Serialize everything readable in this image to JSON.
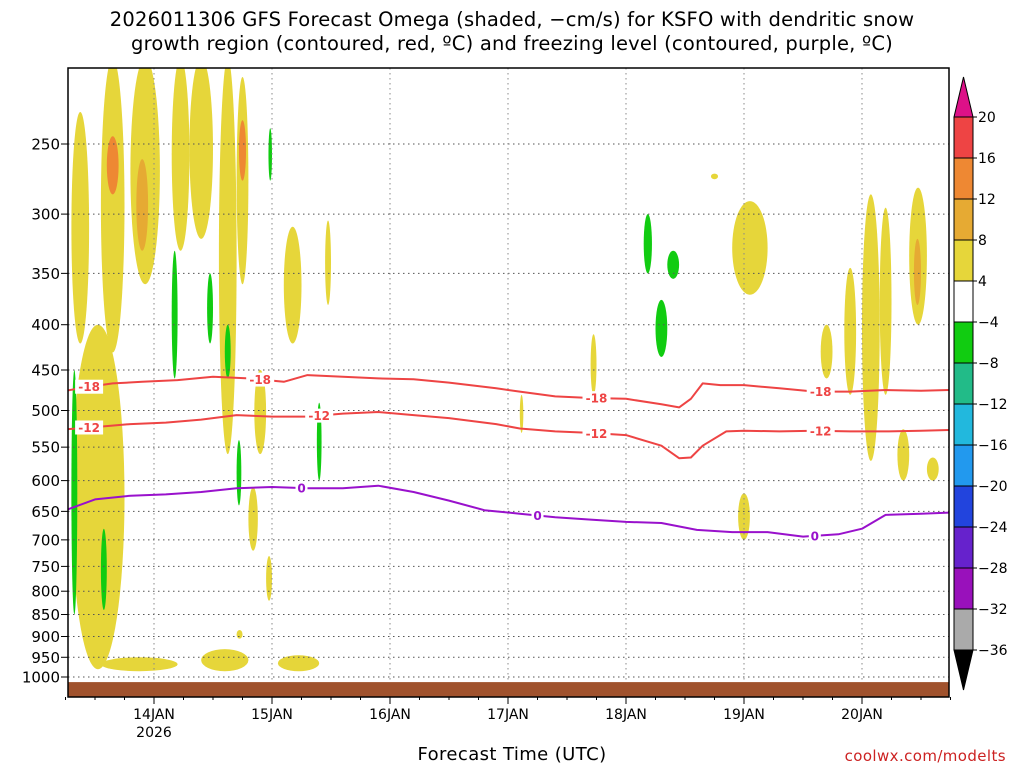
{
  "title": {
    "line1": "2026011306 GFS Forecast Omega (shaded, −cm/s) for KSFO with dendritic snow",
    "line2": "growth region (contoured, red, ºC) and freezing level (contoured, purple, ºC)"
  },
  "xlabel": "Forecast Time (UTC)",
  "credit": "coolwx.com/modelts",
  "chart_data": {
    "type": "heatmap",
    "x_axis": {
      "ticks": [
        "14JAN",
        "15JAN",
        "16JAN",
        "17JAN",
        "18JAN",
        "19JAN",
        "20JAN"
      ],
      "sub_label": "2026",
      "range_days": [
        13.25,
        20.75
      ]
    },
    "y_axis": {
      "label": "",
      "ticks": [
        250,
        300,
        350,
        400,
        450,
        500,
        550,
        600,
        650,
        700,
        750,
        800,
        850,
        900,
        950,
        1000
      ],
      "range_hpa": [
        200,
        1020
      ],
      "scale": "log-pressure"
    },
    "grid": true,
    "colorbar": {
      "labels": [
        "20",
        "16",
        "12",
        "8",
        "4",
        "−4",
        "−8",
        "−12",
        "−16",
        "−20",
        "−24",
        "−28",
        "−32",
        "−36"
      ],
      "bands": [
        {
          "max": 20,
          "min": 16,
          "color": "#ee4444"
        },
        {
          "max": 16,
          "min": 12,
          "color": "#ee8833"
        },
        {
          "max": 12,
          "min": 8,
          "color": "#e6aa33"
        },
        {
          "max": 8,
          "min": 4,
          "color": "#e6d63a"
        },
        {
          "max": 4,
          "min": -4,
          "color": "#ffffff"
        },
        {
          "max": -4,
          "min": -8,
          "color": "#11cc11"
        },
        {
          "max": -8,
          "min": -12,
          "color": "#22bb88"
        },
        {
          "max": -12,
          "min": -16,
          "color": "#22b8dd"
        },
        {
          "max": -16,
          "min": -20,
          "color": "#2299ee"
        },
        {
          "max": -20,
          "min": -24,
          "color": "#2244dd"
        },
        {
          "max": -24,
          "min": -28,
          "color": "#6622cc"
        },
        {
          "max": -28,
          "min": -32,
          "color": "#9911bb"
        },
        {
          "max": -32,
          "min": -36,
          "color": "#aaaaaa"
        }
      ],
      "top_arrow_color": "#dd1188",
      "bottom_arrow_color": "#000000"
    },
    "ground_color": "#a0522d",
    "series": [
      {
        "name": "-18",
        "color": "#ee4444",
        "x": [
          13.25,
          13.45,
          13.65,
          13.9,
          14.2,
          14.5,
          14.8,
          15.1,
          15.3,
          15.6,
          15.9,
          16.2,
          16.5,
          16.9,
          17.1,
          17.4,
          17.7,
          18.0,
          18.3,
          18.45,
          18.55,
          18.65,
          18.8,
          19.0,
          19.3,
          19.6,
          19.9,
          20.2,
          20.5,
          20.75
        ],
        "values": [
          475,
          470,
          466,
          464,
          462,
          458,
          460,
          464,
          456,
          458,
          460,
          461,
          465,
          472,
          476,
          482,
          484,
          485,
          492,
          496,
          485,
          466,
          468,
          468,
          472,
          476,
          476,
          474,
          475,
          474
        ]
      },
      {
        "name": "-12",
        "color": "#ee4444",
        "x": [
          13.25,
          13.5,
          13.8,
          14.1,
          14.4,
          14.7,
          15.0,
          15.3,
          15.6,
          15.9,
          16.2,
          16.5,
          16.9,
          17.1,
          17.4,
          17.7,
          18.0,
          18.3,
          18.45,
          18.55,
          18.65,
          18.85,
          19.0,
          19.3,
          19.6,
          19.9,
          20.2,
          20.5,
          20.75
        ],
        "values": [
          525,
          522,
          518,
          516,
          512,
          506,
          508,
          508,
          504,
          502,
          506,
          510,
          518,
          524,
          528,
          530,
          533,
          548,
          566,
          565,
          548,
          528,
          527,
          528,
          527,
          528,
          528,
          527,
          526
        ]
      },
      {
        "name": "0",
        "color": "#9911cc",
        "x": [
          13.25,
          13.5,
          13.8,
          14.1,
          14.4,
          14.7,
          15.0,
          15.3,
          15.6,
          15.9,
          16.2,
          16.5,
          16.8,
          17.1,
          17.4,
          17.7,
          18.0,
          18.3,
          18.6,
          18.9,
          19.2,
          19.5,
          19.8,
          20.0,
          20.2,
          20.5,
          20.75
        ],
        "values": [
          648,
          630,
          624,
          622,
          618,
          612,
          610,
          612,
          612,
          608,
          618,
          632,
          648,
          654,
          660,
          664,
          668,
          670,
          682,
          686,
          686,
          694,
          690,
          680,
          656,
          654,
          652
        ]
      }
    ],
    "contour_label_positions": [
      {
        "series": "-18",
        "text": "-18",
        "x": [
          13.45,
          14.9,
          17.75,
          19.65
        ]
      },
      {
        "series": "-12",
        "text": "-12",
        "x": [
          13.45,
          15.4,
          17.75,
          19.65
        ]
      },
      {
        "series": "0",
        "text": "0",
        "x": [
          15.25,
          17.25,
          19.6
        ]
      }
    ],
    "omega_shaded_regions": [
      {
        "value": 6,
        "x": [
          13.3,
          13.45
        ],
        "p": [
          230,
          420
        ]
      },
      {
        "value": 6,
        "x": [
          13.55,
          13.75
        ],
        "p": [
          200,
          430
        ]
      },
      {
        "value": 14,
        "x": [
          13.6,
          13.7
        ],
        "p": [
          245,
          285
        ]
      },
      {
        "value": 6,
        "x": [
          13.8,
          14.05
        ],
        "p": [
          200,
          360
        ]
      },
      {
        "value": 10,
        "x": [
          13.85,
          13.95
        ],
        "p": [
          260,
          330
        ]
      },
      {
        "value": 6,
        "x": [
          14.15,
          14.3
        ],
        "p": [
          200,
          330
        ]
      },
      {
        "value": 6,
        "x": [
          14.3,
          14.5
        ],
        "p": [
          200,
          320
        ]
      },
      {
        "value": 6,
        "x": [
          14.55,
          14.7
        ],
        "p": [
          200,
          560
        ]
      },
      {
        "value": 6,
        "x": [
          14.7,
          14.8
        ],
        "p": [
          210,
          360
        ]
      },
      {
        "value": 16,
        "x": [
          14.72,
          14.78
        ],
        "p": [
          235,
          275
        ]
      },
      {
        "value": 6,
        "x": [
          14.85,
          14.95
        ],
        "p": [
          450,
          560
        ]
      },
      {
        "value": 6,
        "x": [
          15.1,
          15.25
        ],
        "p": [
          310,
          420
        ]
      },
      {
        "value": 6,
        "x": [
          15.45,
          15.5
        ],
        "p": [
          305,
          380
        ]
      },
      {
        "value": 6,
        "x": [
          13.3,
          13.75
        ],
        "p": [
          400,
          980
        ]
      },
      {
        "value": 6,
        "x": [
          13.55,
          13.7
        ],
        "p": [
          620,
          900
        ]
      },
      {
        "value": 6,
        "x": [
          14.8,
          14.88
        ],
        "p": [
          610,
          720
        ]
      },
      {
        "value": 6,
        "x": [
          13.55,
          14.2
        ],
        "p": [
          950,
          985
        ]
      },
      {
        "value": 6,
        "x": [
          14.4,
          14.8
        ],
        "p": [
          930,
          985
        ]
      },
      {
        "value": 6,
        "x": [
          15.05,
          15.4
        ],
        "p": [
          945,
          985
        ]
      },
      {
        "value": 6,
        "x": [
          14.7,
          14.75
        ],
        "p": [
          885,
          905
        ]
      },
      {
        "value": 6,
        "x": [
          14.95,
          15.0
        ],
        "p": [
          730,
          820
        ]
      },
      {
        "value": 6,
        "x": [
          17.1,
          17.13
        ],
        "p": [
          480,
          530
        ]
      },
      {
        "value": 6,
        "x": [
          17.7,
          17.75
        ],
        "p": [
          410,
          480
        ]
      },
      {
        "value": 6,
        "x": [
          18.95,
          19.05
        ],
        "p": [
          620,
          700
        ]
      },
      {
        "value": 6,
        "x": [
          18.9,
          19.2
        ],
        "p": [
          290,
          370
        ]
      },
      {
        "value": 6,
        "x": [
          18.72,
          18.78
        ],
        "p": [
          270,
          274
        ]
      },
      {
        "value": 6,
        "x": [
          19.65,
          19.75
        ],
        "p": [
          400,
          460
        ]
      },
      {
        "value": 6,
        "x": [
          19.85,
          19.95
        ],
        "p": [
          345,
          480
        ]
      },
      {
        "value": 6,
        "x": [
          20.0,
          20.15
        ],
        "p": [
          285,
          570
        ]
      },
      {
        "value": 6,
        "x": [
          20.15,
          20.25
        ],
        "p": [
          295,
          480
        ]
      },
      {
        "value": 6,
        "x": [
          20.3,
          20.4
        ],
        "p": [
          525,
          600
        ]
      },
      {
        "value": 6,
        "x": [
          20.55,
          20.65
        ],
        "p": [
          565,
          600
        ]
      },
      {
        "value": 6,
        "x": [
          20.4,
          20.55
        ],
        "p": [
          280,
          400
        ]
      },
      {
        "value": 10,
        "x": [
          20.44,
          20.5
        ],
        "p": [
          320,
          380
        ]
      },
      {
        "value": -6,
        "x": [
          13.3,
          13.35
        ],
        "p": [
          450,
          850
        ]
      },
      {
        "value": -6,
        "x": [
          13.55,
          13.6
        ],
        "p": [
          680,
          840
        ]
      },
      {
        "value": -6,
        "x": [
          14.15,
          14.2
        ],
        "p": [
          330,
          460
        ]
      },
      {
        "value": -6,
        "x": [
          14.45,
          14.5
        ],
        "p": [
          350,
          420
        ]
      },
      {
        "value": -6,
        "x": [
          14.6,
          14.65
        ],
        "p": [
          400,
          460
        ]
      },
      {
        "value": -6,
        "x": [
          14.7,
          14.74
        ],
        "p": [
          540,
          640
        ]
      },
      {
        "value": -6,
        "x": [
          14.97,
          15.0
        ],
        "p": [
          240,
          275
        ]
      },
      {
        "value": -6,
        "x": [
          15.38,
          15.42
        ],
        "p": [
          490,
          600
        ]
      },
      {
        "value": -6,
        "x": [
          18.15,
          18.22
        ],
        "p": [
          300,
          350
        ]
      },
      {
        "value": -6,
        "x": [
          18.25,
          18.35
        ],
        "p": [
          375,
          435
        ]
      },
      {
        "value": -6,
        "x": [
          18.35,
          18.45
        ],
        "p": [
          330,
          355
        ]
      }
    ]
  }
}
